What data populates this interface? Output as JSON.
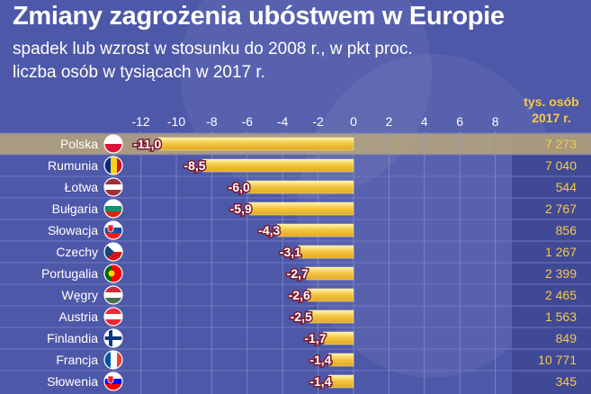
{
  "title": "Zmiany zagrożenia ubóstwem w Europie",
  "subtitle_lines": [
    "spadek lub wzrost w stosunku do 2008 r., w pkt proc.",
    "liczba osób w tysiącach w 2017 r."
  ],
  "right_column_header": [
    "tys. osób",
    "2017 r."
  ],
  "colors": {
    "background": "#4e58a8",
    "bar": "#f5c744",
    "bar_edge": "#fff3a8",
    "highlight_row": "#b8a77a",
    "header_accent": "#f7c94a",
    "value_text": "#f7c94a"
  },
  "chart_data": {
    "type": "bar",
    "orientation": "horizontal",
    "title": "Zmiany zagrożenia ubóstwem w Europie",
    "x_ticks": [
      "-12",
      "-10",
      "-8",
      "-6",
      "-4",
      "-2",
      "0",
      "2",
      "4",
      "6",
      "8"
    ],
    "xlim": [
      -12,
      8
    ],
    "grid": true,
    "categories": [
      "Polska",
      "Rumunia",
      "Łotwa",
      "Bułgaria",
      "Słowacja",
      "Czechy",
      "Portugalia",
      "Węgry",
      "Austria",
      "Finlandia",
      "Francja",
      "Słowenia"
    ],
    "values": [
      -11.0,
      -8.5,
      -6.0,
      -5.9,
      -4.3,
      -3.1,
      -2.7,
      -2.6,
      -2.5,
      -1.7,
      -1.4,
      -1.4
    ],
    "value_labels": [
      "-11,0",
      "-8,5",
      "-6,0",
      "-5,9",
      "-4,3",
      "-3,1",
      "-2,7",
      "-2,6",
      "-2,5",
      "-1,7",
      "-1,4",
      "-1,4"
    ],
    "people_thousands": [
      "7 273",
      "7 040",
      "544",
      "2 767",
      "856",
      "1 267",
      "2 399",
      "2 465",
      "1 563",
      "849",
      "10 771",
      "345"
    ],
    "flags": [
      {
        "country": "Polska",
        "colors": [
          "#ffffff",
          "#dc143c"
        ]
      },
      {
        "country": "Rumunia",
        "colors": [
          "#002b7f",
          "#fcd116",
          "#ce1126"
        ]
      },
      {
        "country": "Łotwa",
        "colors": [
          "#9e3039",
          "#ffffff",
          "#9e3039"
        ]
      },
      {
        "country": "Bułgaria",
        "colors": [
          "#ffffff",
          "#00966e",
          "#d62612"
        ]
      },
      {
        "country": "Słowacja",
        "colors": [
          "#ffffff",
          "#0b4ea2",
          "#ee1c25"
        ]
      },
      {
        "country": "Czechy",
        "colors": [
          "#ffffff",
          "#d7141a",
          "#11457e"
        ]
      },
      {
        "country": "Portugalia",
        "colors": [
          "#006600",
          "#ff0000"
        ]
      },
      {
        "country": "Węgry",
        "colors": [
          "#ce2939",
          "#ffffff",
          "#477050"
        ]
      },
      {
        "country": "Austria",
        "colors": [
          "#ed2939",
          "#ffffff",
          "#ed2939"
        ]
      },
      {
        "country": "Finlandia",
        "colors": [
          "#ffffff",
          "#003580"
        ]
      },
      {
        "country": "Francja",
        "colors": [
          "#0055a4",
          "#ffffff",
          "#ef4135"
        ]
      },
      {
        "country": "Słowenia",
        "colors": [
          "#ffffff",
          "#0000ff",
          "#ff0000"
        ]
      }
    ],
    "highlighted_category": "Polska"
  }
}
